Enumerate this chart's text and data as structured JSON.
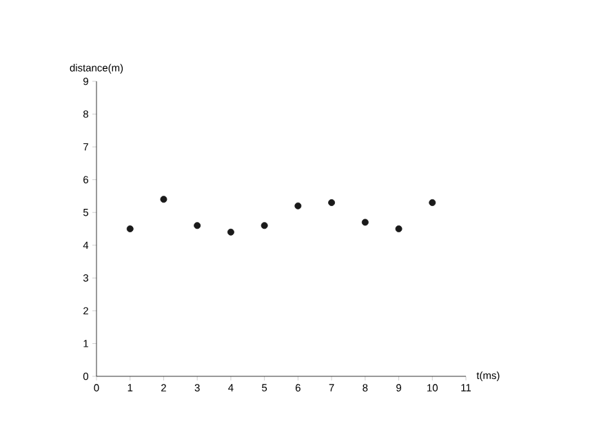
{
  "chart_data": {
    "type": "scatter",
    "xlabel": "t(ms)",
    "ylabel": "distance(m)",
    "x": [
      1,
      2,
      3,
      4,
      5,
      6,
      7,
      8,
      9,
      10
    ],
    "series": [
      {
        "color": "#1a1a1a",
        "values": [
          4.5,
          5.4,
          4.6,
          4.4,
          4.6,
          5.2,
          5.3,
          4.7,
          4.5,
          5.3
        ]
      }
    ],
    "xlim": [
      0,
      11
    ],
    "ylim": [
      0,
      9
    ],
    "xticks": [
      0,
      1,
      2,
      3,
      4,
      5,
      6,
      7,
      8,
      9,
      10,
      11
    ],
    "yticks": [
      0,
      1,
      2,
      3,
      4,
      5,
      6,
      7,
      8,
      9
    ],
    "marker": "circle",
    "grid": false
  }
}
